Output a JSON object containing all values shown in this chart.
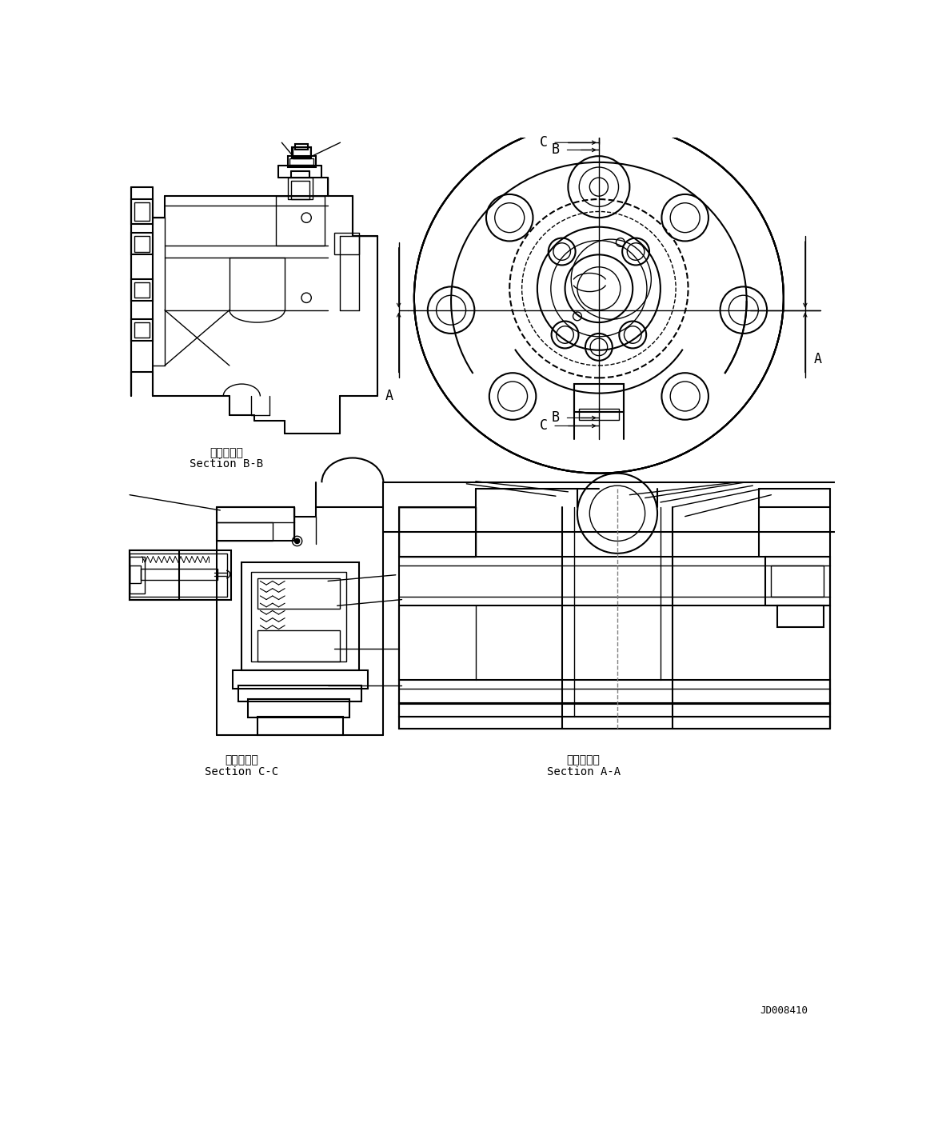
{
  "background_color": "#ffffff",
  "line_color": "#000000",
  "fig_width": 11.63,
  "fig_height": 14.34,
  "label_bb_japanese": "断面Ｂ－Ｂ",
  "label_bb_english": "Section B-B",
  "label_cc_japanese": "断面Ｃ－Ｃ",
  "label_cc_english": "Section C-C",
  "label_aa_japanese": "断面Ａ－Ａ",
  "label_aa_english": "Section A-A",
  "drawing_number": "JD008410",
  "dim_A": "A",
  "dim_B": "B",
  "dim_C": "C"
}
